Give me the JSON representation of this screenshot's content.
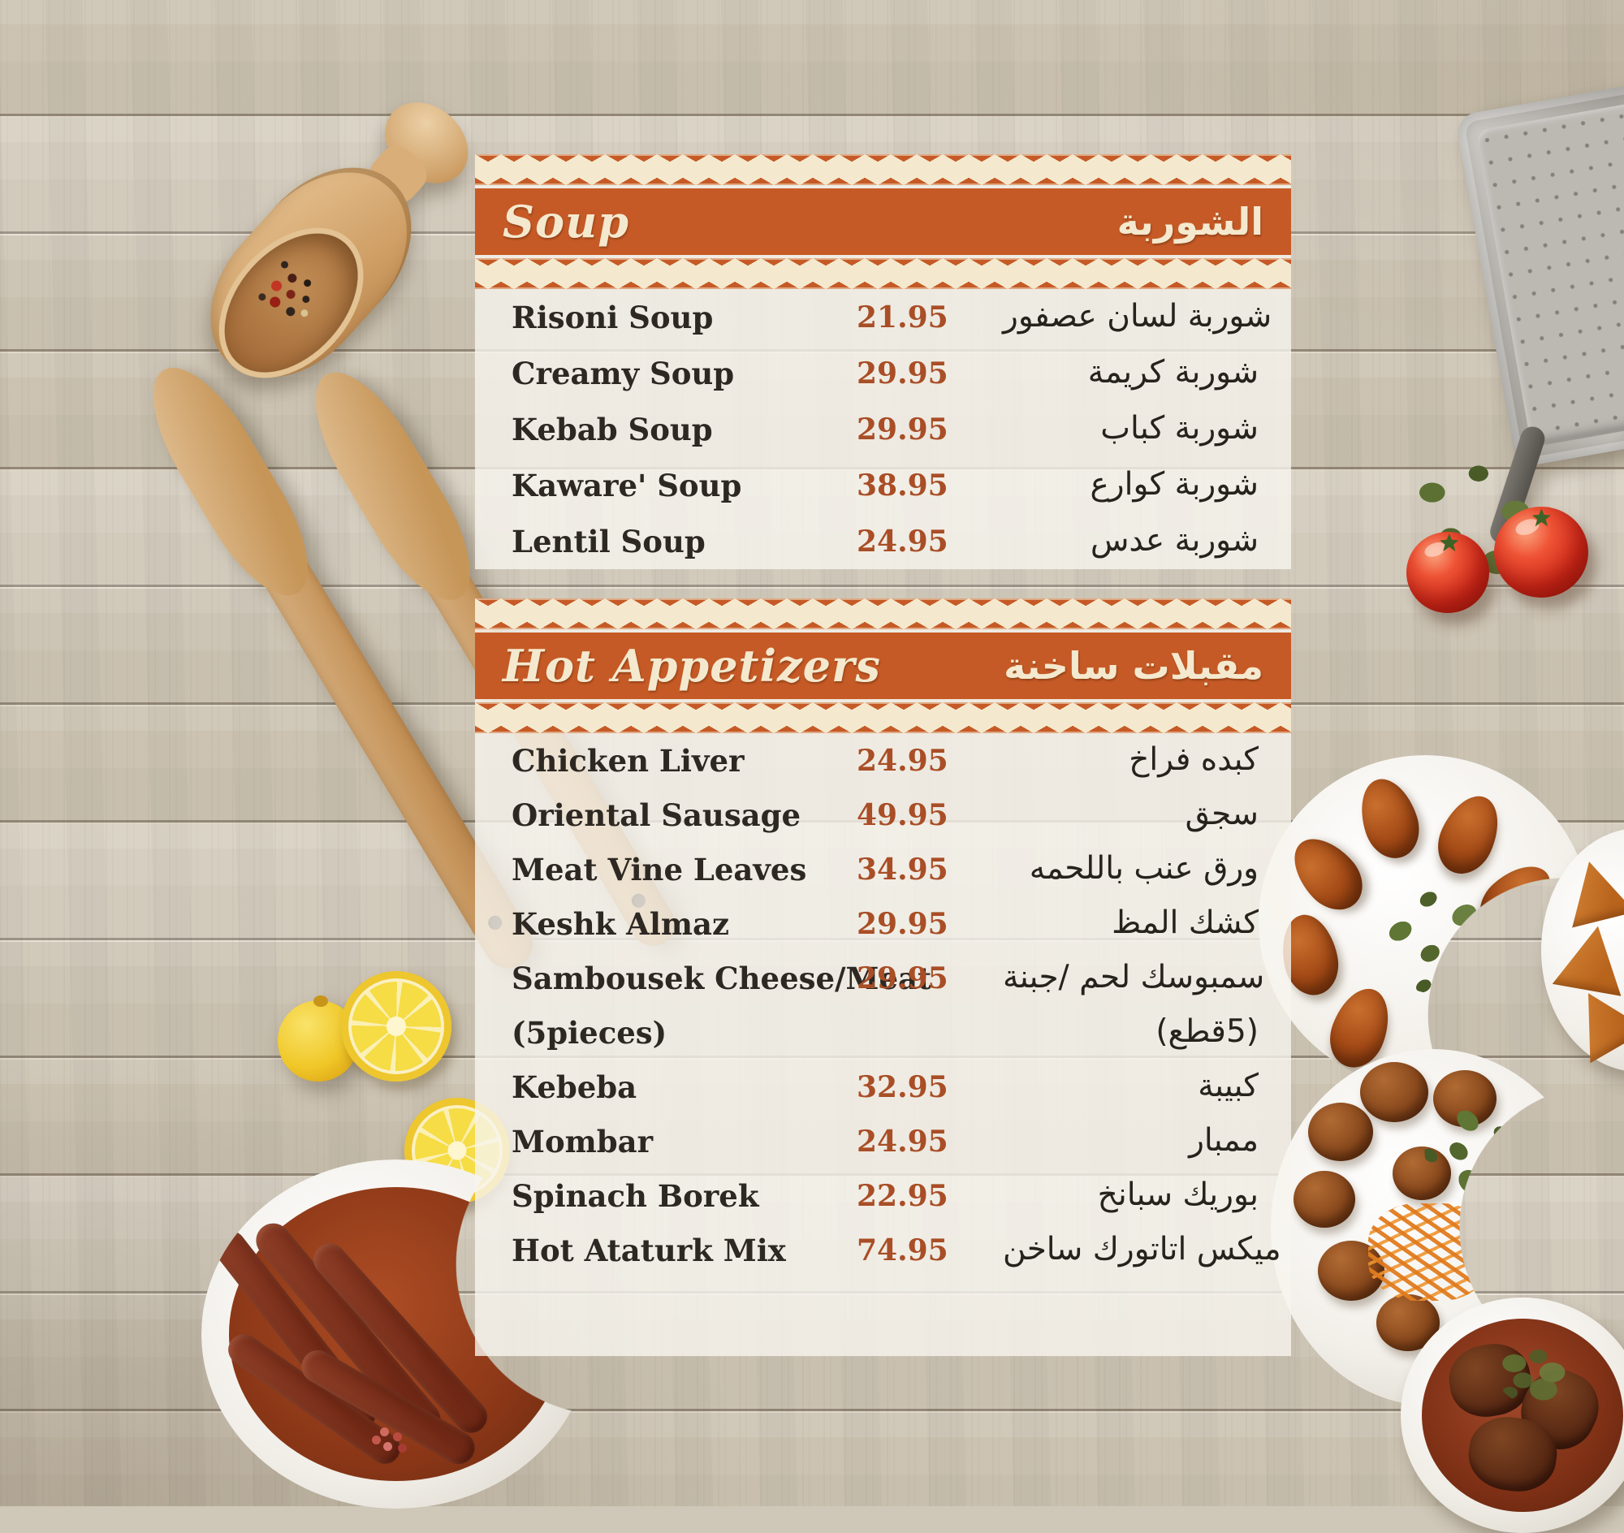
{
  "menu": {
    "sections": [
      {
        "id": "soup",
        "title_en": "Soup",
        "title_ar": "الشوربة",
        "items": [
          {
            "name_en": "Risoni Soup",
            "price": "21.95",
            "name_ar": "شوربة لسان عصفور"
          },
          {
            "name_en": "Creamy Soup",
            "price": "29.95",
            "name_ar": "شوربة كريمة"
          },
          {
            "name_en": "Kebab Soup",
            "price": "29.95",
            "name_ar": "شوربة كباب"
          },
          {
            "name_en": "Kaware' Soup",
            "price": "38.95",
            "name_ar": "شوربة كوارع"
          },
          {
            "name_en": "Lentil Soup",
            "price": "24.95",
            "name_ar": "شوربة عدس"
          }
        ]
      },
      {
        "id": "hot-appetizers",
        "title_en": "Hot Appetizers",
        "title_ar": "مقبلات ساخنة",
        "items": [
          {
            "name_en": "Chicken Liver",
            "price": "24.95",
            "name_ar": "كبده فراخ"
          },
          {
            "name_en": "Oriental Sausage",
            "price": "49.95",
            "name_ar": "سجق"
          },
          {
            "name_en": "Meat Vine Leaves",
            "price": "34.95",
            "name_ar": "ورق عنب باللحمه"
          },
          {
            "name_en": "Keshk Almaz",
            "price": "29.95",
            "name_ar": "كشك المظ"
          },
          {
            "name_en": "Sambousek Cheese/Meat",
            "price": "29.95",
            "name_ar": "سمبوسك لحم /جبنة",
            "note_en": "(5pieces)",
            "note_ar": "(5قطع)"
          },
          {
            "name_en": "Kebeba",
            "price": "32.95",
            "name_ar": "كبيبة"
          },
          {
            "name_en": "Mombar",
            "price": "24.95",
            "name_ar": "ممبار"
          },
          {
            "name_en": "Spinach Borek",
            "price": "22.95",
            "name_ar": "بوريك سبانخ"
          },
          {
            "name_en": "Hot Ataturk Mix",
            "price": "74.95",
            "name_ar": "ميكس اتاتورك ساخن"
          }
        ]
      }
    ]
  },
  "colors": {
    "accent_orange": "#c65a26",
    "band_text_cream": "#f4e9ce",
    "price_text": "#a94e26",
    "item_text": "#2d2822",
    "wood_base": "#cfc7b8"
  },
  "decor_photos": [
    "wooden-spice-scoop-with-peppercorns",
    "metal-grater",
    "herb-sprig",
    "tomatoes",
    "wooden-spatulas",
    "lemon-slices",
    "sausage-crescent-bowl",
    "kibbeh-crescent-plate",
    "sambousek-plate",
    "meatball-crescent-plate",
    "braised-meat-dish"
  ]
}
